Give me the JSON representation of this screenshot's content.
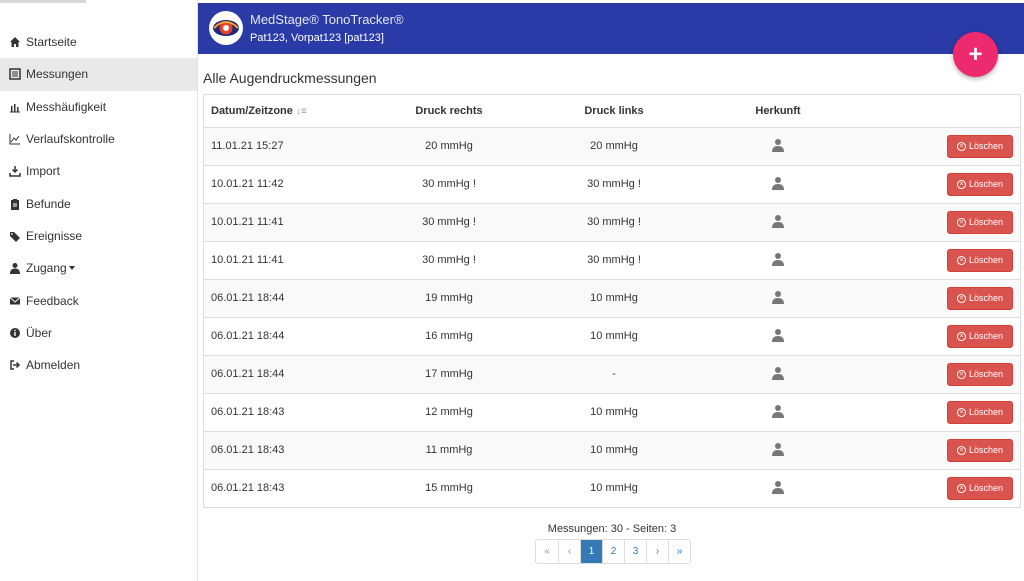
{
  "app": {
    "title": "MedStage® TonoTracker®",
    "patient": "Pat123, Vorpat123 [pat123]"
  },
  "sidebar": {
    "items": [
      {
        "label": "Startseite",
        "icon": "home-icon"
      },
      {
        "label": "Messungen",
        "icon": "list-icon"
      },
      {
        "label": "Messhäufigkeit",
        "icon": "bar-chart-icon"
      },
      {
        "label": "Verlaufskontrolle",
        "icon": "line-chart-icon"
      },
      {
        "label": "Import",
        "icon": "import-icon"
      },
      {
        "label": "Befunde",
        "icon": "clipboard-icon"
      },
      {
        "label": "Ereignisse",
        "icon": "tags-icon"
      },
      {
        "label": "Zugang",
        "icon": "user-icon"
      },
      {
        "label": "Feedback",
        "icon": "envelope-icon"
      },
      {
        "label": "Über",
        "icon": "info-icon"
      },
      {
        "label": "Abmelden",
        "icon": "logout-icon"
      }
    ]
  },
  "fab": {
    "label": "+"
  },
  "main": {
    "title": "Alle Augendruckmessungen",
    "columns": [
      "Datum/Zeitzone",
      "Druck rechts",
      "Druck links",
      "Herkunft",
      ""
    ],
    "delete_label": "Löschen",
    "rows": [
      {
        "date": "11.01.21 15:27",
        "right": "20 mmHg",
        "left": "20 mmHg"
      },
      {
        "date": "10.01.21 11:42",
        "right": "30 mmHg !",
        "left": "30 mmHg !"
      },
      {
        "date": "10.01.21 11:41",
        "right": "30 mmHg !",
        "left": "30 mmHg !"
      },
      {
        "date": "10.01.21 11:41",
        "right": "30 mmHg !",
        "left": "30 mmHg !"
      },
      {
        "date": "06.01.21 18:44",
        "right": "19 mmHg",
        "left": "10 mmHg"
      },
      {
        "date": "06.01.21 18:44",
        "right": "16 mmHg",
        "left": "10 mmHg"
      },
      {
        "date": "06.01.21 18:44",
        "right": "17 mmHg",
        "left": "-"
      },
      {
        "date": "06.01.21 18:43",
        "right": "12 mmHg",
        "left": "10 mmHg"
      },
      {
        "date": "06.01.21 18:43",
        "right": "11 mmHg",
        "left": "10 mmHg"
      },
      {
        "date": "06.01.21 18:43",
        "right": "15 mmHg",
        "left": "10 mmHg"
      }
    ]
  },
  "footer": {
    "summary": "Messungen: 30 - Seiten: 3",
    "pages": [
      "«",
      "‹",
      "1",
      "2",
      "3",
      "›",
      "»"
    ],
    "active_page": "1"
  },
  "colors": {
    "header": "#2a3aa6",
    "fab": "#ee2a6e",
    "delete": "#d9534f",
    "pagination_active": "#337ab7"
  }
}
